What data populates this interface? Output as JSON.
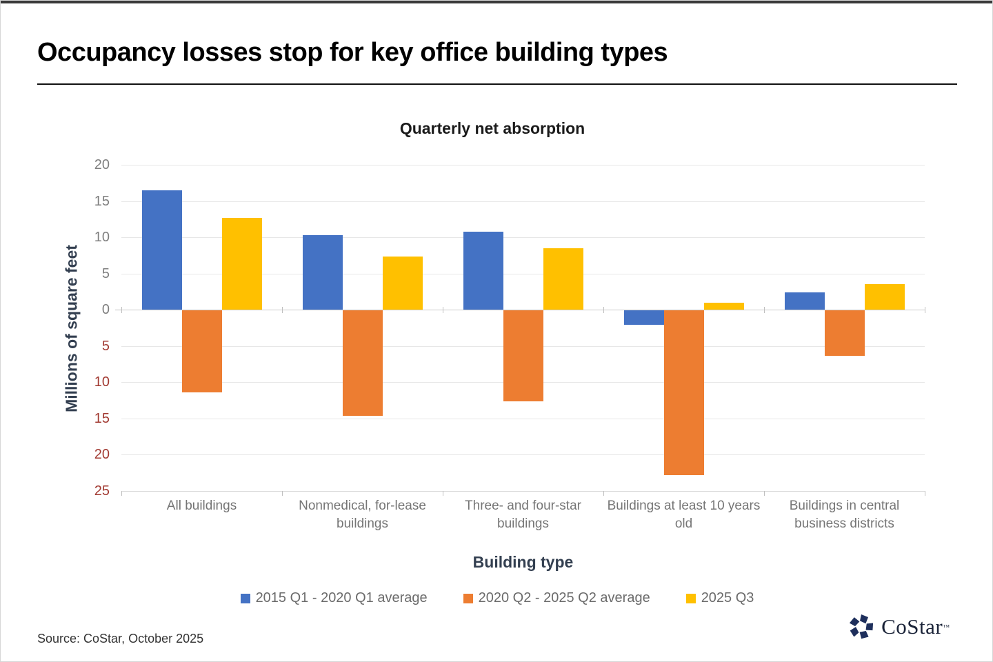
{
  "page": {
    "title": "Occupancy losses stop for key office building types",
    "source": "Source: CoStar, October 2025",
    "logo": {
      "text": "CoStar",
      "tm": "™"
    }
  },
  "chart_data": {
    "type": "bar",
    "title": "Quarterly net absorption",
    "xlabel": "Building type",
    "ylabel": "Millions of square feet",
    "ylim": [
      -25,
      20
    ],
    "ytick_interval": 5,
    "grid": true,
    "legend_position": "bottom",
    "tick_colors": {
      "positive": "#7f7f7f",
      "negative": "#A23A32"
    },
    "categories": [
      "All buildings",
      "Nonmedical, for-lease buildings",
      "Three- and four-star buildings",
      "Buildings at least 10 years old",
      "Buildings in central business districts"
    ],
    "series": [
      {
        "name": "2015 Q1 - 2020 Q1 average",
        "color": "#4472C4",
        "values": [
          16.5,
          10.3,
          10.8,
          -2.0,
          2.4
        ]
      },
      {
        "name": "2020 Q2 - 2025 Q2 average",
        "color": "#ED7D31",
        "values": [
          -11.3,
          -14.5,
          -12.5,
          -22.7,
          -6.3
        ]
      },
      {
        "name": "2025 Q3",
        "color": "#FFC000",
        "values": [
          12.7,
          7.3,
          8.5,
          1.0,
          3.5
        ]
      }
    ]
  }
}
